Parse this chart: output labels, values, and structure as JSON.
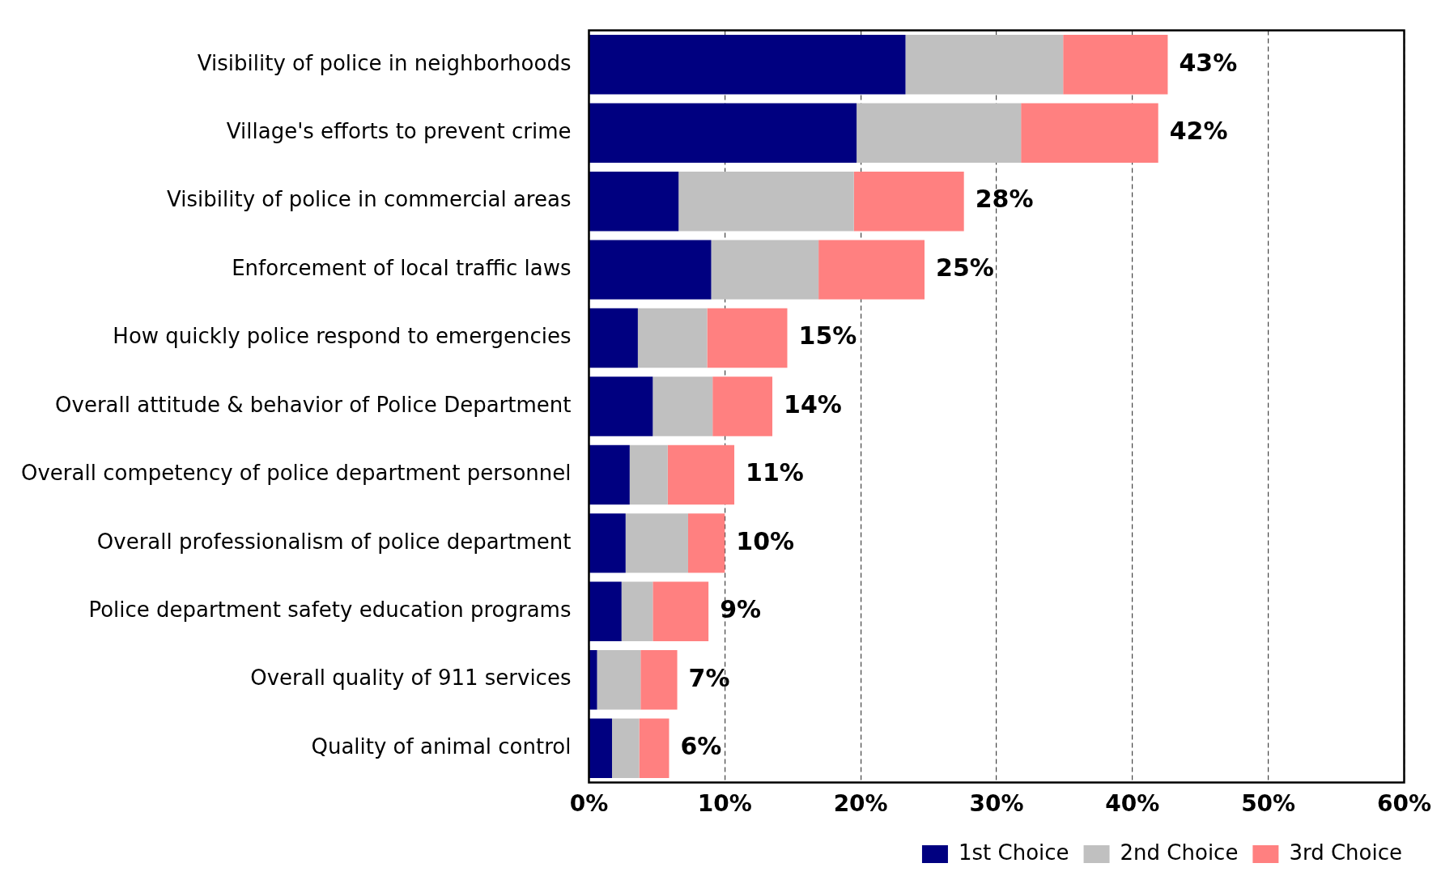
{
  "chart_data": {
    "type": "bar",
    "orientation": "horizontal",
    "stacked": true,
    "categories": [
      "Visibility of police in neighborhoods",
      "Village's efforts to prevent crime",
      "Visibility of police in commercial areas",
      "Enforcement of local traffic laws",
      "How quickly police respond to emergencies",
      "Overall attitude & behavior of Police Department",
      "Overall competency of police department personnel",
      "Overall professionalism of police department",
      "Police department safety education programs",
      "Overall quality of 911 services",
      "Quality of animal control"
    ],
    "series": [
      {
        "name": "1st Choice",
        "color": "#000080",
        "values": [
          23.3,
          19.7,
          6.6,
          9.0,
          3.6,
          4.7,
          3.0,
          2.7,
          2.4,
          0.6,
          1.7
        ]
      },
      {
        "name": "2nd Choice",
        "color": "#c0c0c0",
        "values": [
          11.6,
          12.1,
          12.9,
          7.9,
          5.1,
          4.4,
          2.8,
          4.6,
          2.3,
          3.2,
          2.0
        ]
      },
      {
        "name": "3rd Choice",
        "color": "#ff8080",
        "values": [
          7.7,
          10.1,
          8.1,
          7.8,
          5.9,
          4.4,
          4.9,
          2.7,
          4.1,
          2.7,
          2.2
        ]
      }
    ],
    "totals": [
      "43%",
      "42%",
      "28%",
      "25%",
      "15%",
      "14%",
      "11%",
      "10%",
      "9%",
      "7%",
      "6%"
    ],
    "xlim": [
      0,
      60
    ],
    "xticks": [
      {
        "value": 0,
        "label": "0%"
      },
      {
        "value": 10,
        "label": "10%"
      },
      {
        "value": 20,
        "label": "20%"
      },
      {
        "value": 30,
        "label": "30%"
      },
      {
        "value": 40,
        "label": "40%"
      },
      {
        "value": 50,
        "label": "50%"
      },
      {
        "value": 60,
        "label": "60%"
      }
    ],
    "grid": "x",
    "legend": "bottom"
  }
}
